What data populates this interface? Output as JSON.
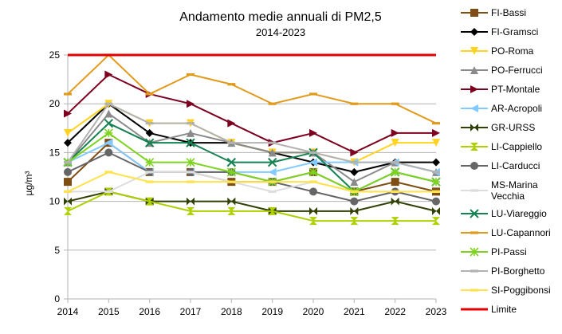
{
  "chart_data": {
    "type": "line",
    "title": "Andamento medie annuali di PM2,5",
    "subtitle": "2014-2023",
    "xlabel": "",
    "ylabel": "µg/m³",
    "ylim": [
      0,
      25
    ],
    "yticks": [
      0,
      5,
      10,
      15,
      20,
      25
    ],
    "grid": true,
    "legend_position": "right",
    "categories": [
      "2014",
      "2015",
      "2016",
      "2017",
      "2018",
      "2019",
      "2020",
      "2021",
      "2022",
      "2023"
    ],
    "series": [
      {
        "name": "FI-Bassi",
        "label": "FI-Bassi",
        "color": "#7f4e14",
        "marker": "square",
        "values": [
          12,
          16,
          13,
          13,
          12,
          12,
          13,
          11,
          12,
          11
        ]
      },
      {
        "name": "FI-Gramsci",
        "label": "FI-Gramsci",
        "color": "#000000",
        "marker": "diamond",
        "values": [
          16,
          20,
          17,
          16,
          16,
          15,
          14,
          13,
          14,
          14
        ]
      },
      {
        "name": "PO-Roma",
        "label": "PO-Roma",
        "color": "#ffd320",
        "marker": "triangle-down",
        "values": [
          17,
          20,
          18,
          18,
          16,
          15,
          15,
          14,
          16,
          16
        ]
      },
      {
        "name": "PO-Ferrucci",
        "label": "PO-Ferrucci",
        "color": "#8a8a8a",
        "marker": "triangle",
        "values": [
          14,
          19,
          16,
          17,
          16,
          15,
          15,
          12,
          14,
          13
        ]
      },
      {
        "name": "PT-Montale",
        "label": "PT-Montale",
        "color": "#7e0021",
        "marker": "arrow",
        "values": [
          19,
          23,
          21,
          20,
          18,
          16,
          17,
          15,
          17,
          17
        ]
      },
      {
        "name": "AR-Acropoli",
        "label": "AR-Acropoli",
        "color": "#83caff",
        "marker": "arrow-left",
        "values": [
          14,
          16,
          13,
          13,
          13,
          13,
          14,
          14,
          14,
          13
        ]
      },
      {
        "name": "GR-URSS",
        "label": "GR-URSS",
        "color": "#314004",
        "marker": "bowtie",
        "values": [
          10,
          11,
          10,
          10,
          10,
          9,
          9,
          9,
          10,
          9
        ]
      },
      {
        "name": "LI-Cappiello",
        "label": "LI-Cappiello",
        "color": "#aecf00",
        "marker": "hourglass",
        "values": [
          9,
          11,
          10,
          9,
          9,
          9,
          8,
          8,
          8,
          8
        ]
      },
      {
        "name": "LI-Carducci",
        "label": "LI-Carducci",
        "color": "#666666",
        "marker": "circle",
        "values": [
          13,
          15,
          13,
          13,
          13,
          12,
          11,
          10,
          11,
          10
        ]
      },
      {
        "name": "MS-Marina Vecchia",
        "label": [
          "MS-Marina",
          "Vecchia"
        ],
        "color": "#dddddd",
        "marker": "dash",
        "values": [
          11,
          11,
          13,
          13,
          12,
          11,
          12,
          11,
          11,
          11
        ]
      },
      {
        "name": "LU-Viareggio",
        "label": "LU-Viareggio",
        "color": "#168253",
        "marker": "x",
        "values": [
          14,
          18,
          16,
          16,
          14,
          14,
          15,
          11,
          13,
          12
        ]
      },
      {
        "name": "LU-Capannori",
        "label": "LU-Capannori",
        "color": "#e09b1c",
        "marker": "dash",
        "values": [
          21,
          25,
          21,
          23,
          22,
          20,
          21,
          20,
          20,
          18
        ]
      },
      {
        "name": "PI-Passi",
        "label": "PI-Passi",
        "color": "#7ed321",
        "marker": "star",
        "values": [
          14,
          17,
          14,
          14,
          13,
          12,
          13,
          11,
          13,
          12
        ]
      },
      {
        "name": "PI-Borghetto",
        "label": "PI-Borghetto",
        "color": "#b2b2b2",
        "marker": "dash",
        "values": [
          14,
          20,
          18,
          18,
          16,
          16,
          15,
          14,
          14,
          13
        ]
      },
      {
        "name": "SI-Poggibonsi",
        "label": "SI-Poggibonsi",
        "color": "#ffe24c",
        "marker": "dash",
        "values": [
          11,
          13,
          12,
          12,
          12,
          12,
          12,
          11,
          11,
          11
        ]
      },
      {
        "name": "Limite",
        "label": "Limite",
        "color": "#e20000",
        "marker": "none",
        "width": 3,
        "values": [
          25,
          25,
          25,
          25,
          25,
          25,
          25,
          25,
          25,
          25
        ]
      }
    ]
  }
}
